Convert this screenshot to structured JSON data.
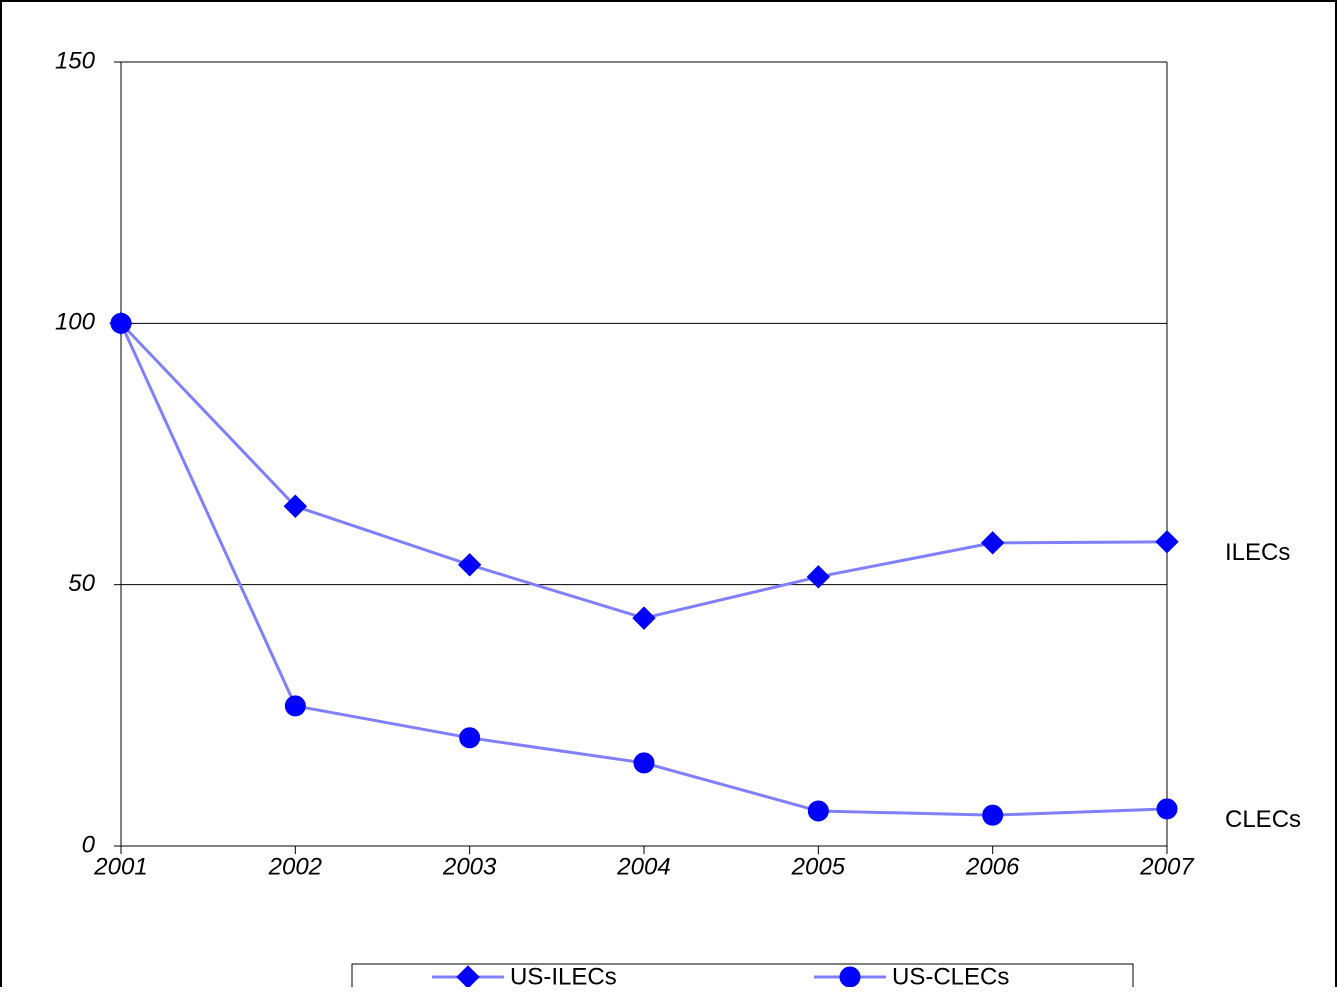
{
  "chart_data": {
    "type": "line",
    "categories": [
      "2001",
      "2002",
      "2003",
      "2004",
      "2005",
      "2006",
      "2007"
    ],
    "series": [
      {
        "name": "US-ILECs",
        "color": "#8080ff",
        "marker_color": "#0000ff",
        "marker": "diamond",
        "values": [
          100,
          65.0,
          53.8,
          43.6,
          51.5,
          58.0,
          58.2
        ]
      },
      {
        "name": "US-CLECs",
        "color": "#8080ff",
        "marker_color": "#0000ff",
        "marker": "circle",
        "values": [
          100,
          26.8,
          20.7,
          15.9,
          6.7,
          5.9,
          7.1
        ]
      }
    ],
    "annotations": [
      "ILECs",
      "CLECs"
    ],
    "ylim": [
      0,
      150
    ],
    "yticks": [
      0,
      50,
      100,
      150
    ],
    "grid": true,
    "legend": "bottom"
  }
}
